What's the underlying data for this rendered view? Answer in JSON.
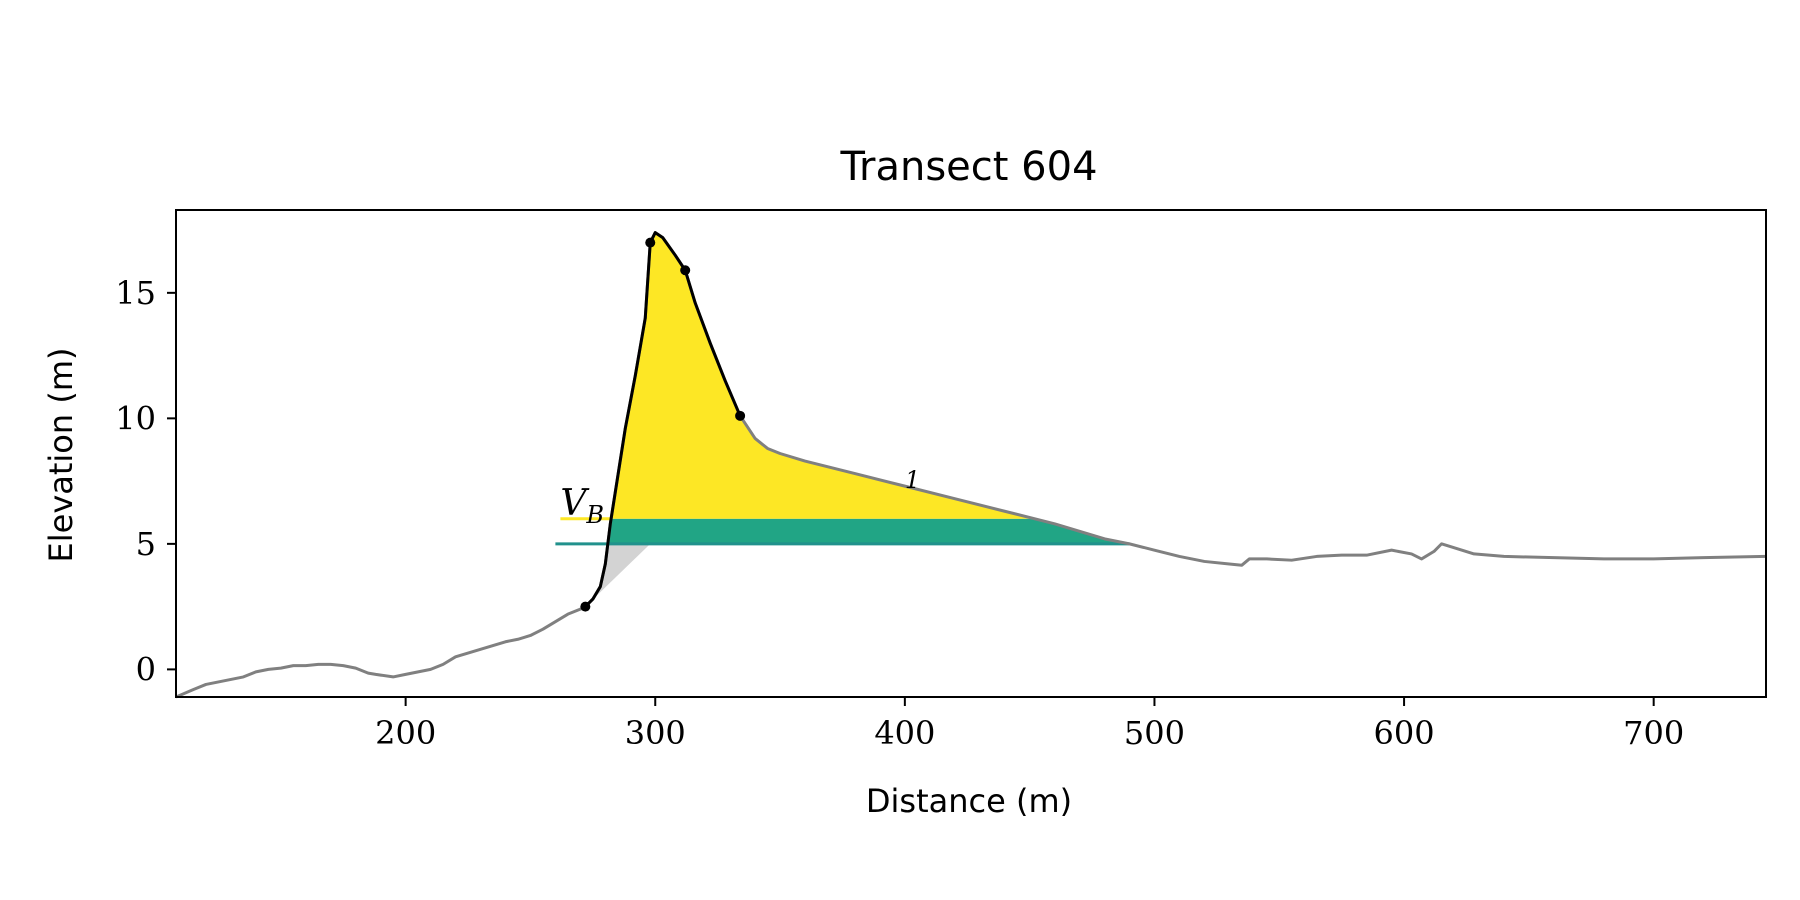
{
  "chart_data": {
    "type": "line",
    "title": "Transect 604",
    "xlabel": "Distance (m)",
    "ylabel": "Elevation (m)",
    "xlim": [
      108,
      745
    ],
    "ylim": [
      -1.1,
      18.3
    ],
    "xticks": [
      200,
      300,
      400,
      500,
      600,
      700
    ],
    "yticks": [
      0,
      5,
      10,
      15
    ],
    "grid": false,
    "colors": {
      "profile": "#808080",
      "dune": "#000000",
      "vb_fill": "#fde725",
      "teal_fill": "#21a585",
      "teal_line": "#21918c",
      "gray_fill": "#d3d3d3"
    },
    "profile": [
      [
        108,
        -1.1
      ],
      [
        115,
        -0.8
      ],
      [
        120,
        -0.6
      ],
      [
        125,
        -0.5
      ],
      [
        130,
        -0.4
      ],
      [
        135,
        -0.3
      ],
      [
        140,
        -0.1
      ],
      [
        145,
        0.0
      ],
      [
        150,
        0.05
      ],
      [
        155,
        0.15
      ],
      [
        160,
        0.15
      ],
      [
        165,
        0.2
      ],
      [
        170,
        0.2
      ],
      [
        175,
        0.15
      ],
      [
        180,
        0.05
      ],
      [
        185,
        -0.15
      ],
      [
        188,
        -0.2
      ],
      [
        195,
        -0.3
      ],
      [
        200,
        -0.2
      ],
      [
        205,
        -0.1
      ],
      [
        210,
        0.0
      ],
      [
        215,
        0.2
      ],
      [
        220,
        0.5
      ],
      [
        225,
        0.65
      ],
      [
        230,
        0.8
      ],
      [
        235,
        0.95
      ],
      [
        240,
        1.1
      ],
      [
        245,
        1.2
      ],
      [
        250,
        1.35
      ],
      [
        255,
        1.6
      ],
      [
        260,
        1.9
      ],
      [
        265,
        2.2
      ],
      [
        270,
        2.4
      ],
      [
        272,
        2.5
      ],
      [
        275,
        2.8
      ],
      [
        278,
        3.3
      ],
      [
        280,
        4.2
      ],
      [
        282,
        5.8
      ],
      [
        285,
        7.7
      ],
      [
        288,
        9.6
      ],
      [
        292,
        11.7
      ],
      [
        296,
        14.0
      ],
      [
        298,
        17.0
      ],
      [
        300,
        17.4
      ],
      [
        303,
        17.2
      ],
      [
        308,
        16.5
      ],
      [
        312,
        15.9
      ],
      [
        316,
        14.6
      ],
      [
        322,
        13.0
      ],
      [
        328,
        11.5
      ],
      [
        334,
        10.1
      ],
      [
        340,
        9.2
      ],
      [
        345,
        8.8
      ],
      [
        350,
        8.6
      ],
      [
        360,
        8.3
      ],
      [
        380,
        7.8
      ],
      [
        400,
        7.3
      ],
      [
        420,
        6.8
      ],
      [
        440,
        6.3
      ],
      [
        460,
        5.8
      ],
      [
        480,
        5.2
      ],
      [
        490,
        5.0
      ],
      [
        500,
        4.75
      ],
      [
        510,
        4.5
      ],
      [
        520,
        4.3
      ],
      [
        530,
        4.2
      ],
      [
        535,
        4.15
      ],
      [
        538,
        4.4
      ],
      [
        545,
        4.4
      ],
      [
        555,
        4.35
      ],
      [
        565,
        4.5
      ],
      [
        575,
        4.55
      ],
      [
        585,
        4.55
      ],
      [
        595,
        4.75
      ],
      [
        603,
        4.6
      ],
      [
        607,
        4.4
      ],
      [
        612,
        4.7
      ],
      [
        615,
        5.0
      ],
      [
        620,
        4.85
      ],
      [
        628,
        4.6
      ],
      [
        640,
        4.5
      ],
      [
        660,
        4.45
      ],
      [
        680,
        4.4
      ],
      [
        700,
        4.4
      ],
      [
        720,
        4.45
      ],
      [
        745,
        4.5
      ]
    ],
    "dune_points": [
      [
        272,
        2.5
      ],
      [
        298,
        17.0
      ],
      [
        312,
        15.9
      ],
      [
        334,
        10.1
      ]
    ],
    "vb_level": 6.0,
    "base_level": 5.0,
    "annotations": [
      {
        "text": "V",
        "sub": "B"
      },
      {
        "text": "1"
      }
    ]
  }
}
